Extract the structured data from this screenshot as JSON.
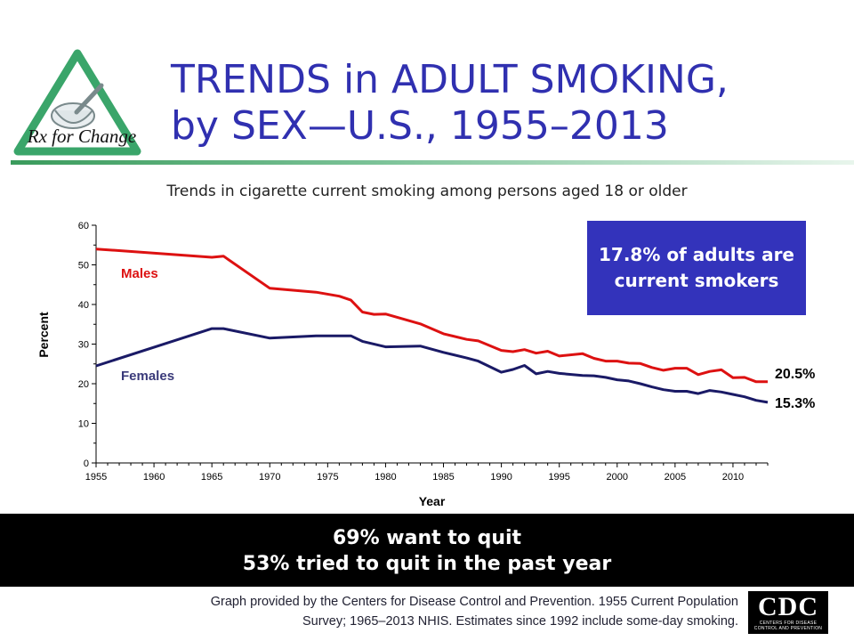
{
  "slide": {
    "title_line1": "TRENDS in ADULT SMOKING,",
    "title_line2": "by SEX—U.S., 1955–2013",
    "subtitle": "Trends in cigarette current smoking among persons aged 18 or older",
    "callout": "17.8% of adults are current smokers",
    "banner_line1": "69% want to quit",
    "banner_line2": "53% tried to quit in the past year",
    "footer_line1": "Graph provided by the Centers for Disease Control and Prevention. 1955 Current Population",
    "footer_line2": "Survey; 1965–2013 NHIS. Estimates since 1992 include some-day smoking.",
    "logo_text": "Rx for Change",
    "cdc_text": "CDC",
    "cdc_subtext": "CENTERS FOR DISEASE CONTROL AND PREVENTION"
  },
  "chart_data": {
    "type": "line",
    "title": "Trends in cigarette current smoking among persons aged 18 or older",
    "xlabel": "Year",
    "ylabel": "Percent",
    "xlim": [
      1955,
      2013
    ],
    "ylim": [
      0,
      60
    ],
    "x_ticks": [
      1955,
      1960,
      1965,
      1970,
      1975,
      1980,
      1985,
      1990,
      1995,
      2000,
      2005,
      2010
    ],
    "y_ticks": [
      0,
      10,
      20,
      30,
      40,
      50,
      60
    ],
    "grid": false,
    "series": [
      {
        "name": "Males",
        "color": "#dd1111",
        "end_label": "20.5%",
        "x": [
          1955,
          1965,
          1966,
          1970,
          1974,
          1976,
          1977,
          1978,
          1979,
          1980,
          1983,
          1985,
          1987,
          1988,
          1990,
          1991,
          1992,
          1993,
          1994,
          1995,
          1997,
          1998,
          1999,
          2000,
          2001,
          2002,
          2003,
          2004,
          2005,
          2006,
          2007,
          2008,
          2009,
          2010,
          2011,
          2012,
          2013
        ],
        "values": [
          54.0,
          51.9,
          52.2,
          44.1,
          43.1,
          42.1,
          41.1,
          38.1,
          37.5,
          37.6,
          35.1,
          32.6,
          31.2,
          30.8,
          28.4,
          28.1,
          28.6,
          27.7,
          28.2,
          27.0,
          27.6,
          26.4,
          25.7,
          25.7,
          25.2,
          25.1,
          24.1,
          23.4,
          23.9,
          23.9,
          22.3,
          23.1,
          23.5,
          21.5,
          21.6,
          20.5,
          20.5
        ]
      },
      {
        "name": "Females",
        "color": "#1a1a66",
        "end_label": "15.3%",
        "x": [
          1955,
          1965,
          1966,
          1970,
          1974,
          1977,
          1978,
          1980,
          1983,
          1985,
          1987,
          1988,
          1990,
          1991,
          1992,
          1993,
          1994,
          1995,
          1997,
          1998,
          1999,
          2000,
          2001,
          2002,
          2003,
          2004,
          2005,
          2006,
          2007,
          2008,
          2009,
          2010,
          2011,
          2012,
          2013
        ],
        "values": [
          24.5,
          33.9,
          33.9,
          31.5,
          32.1,
          32.1,
          30.7,
          29.3,
          29.5,
          27.9,
          26.5,
          25.7,
          22.9,
          23.6,
          24.6,
          22.5,
          23.1,
          22.6,
          22.1,
          22.0,
          21.6,
          21.0,
          20.7,
          20.0,
          19.2,
          18.5,
          18.1,
          18.1,
          17.5,
          18.3,
          17.9,
          17.3,
          16.7,
          15.8,
          15.3
        ]
      }
    ]
  }
}
